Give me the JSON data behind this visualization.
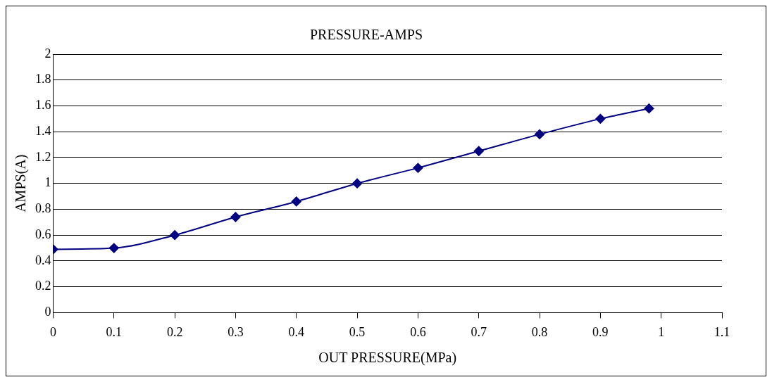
{
  "chart_data": {
    "type": "line",
    "title": "PRESSURE-AMPS",
    "xlabel": "OUT PRESSURE(MPa)",
    "ylabel": "AMPS(A)",
    "x": [
      0,
      0.1,
      0.2,
      0.3,
      0.4,
      0.5,
      0.6,
      0.7,
      0.8,
      0.9,
      0.98
    ],
    "series": [
      {
        "color": "#000080",
        "values": [
          0.49,
          0.5,
          0.6,
          0.74,
          0.86,
          1.0,
          1.12,
          1.25,
          1.38,
          1.5,
          1.58
        ]
      }
    ],
    "xlim": [
      0,
      1.1
    ],
    "xticks": [
      0,
      0.1,
      0.2,
      0.3,
      0.4,
      0.5,
      0.6,
      0.7,
      0.8,
      0.9,
      1,
      1.1
    ],
    "ylim": [
      0,
      2
    ],
    "yticks": [
      0,
      0.2,
      0.4,
      0.6,
      0.8,
      1,
      1.2,
      1.4,
      1.6,
      1.8,
      2
    ],
    "grid": "y",
    "marker": "diamond",
    "line_style": "solid",
    "legend": false
  }
}
